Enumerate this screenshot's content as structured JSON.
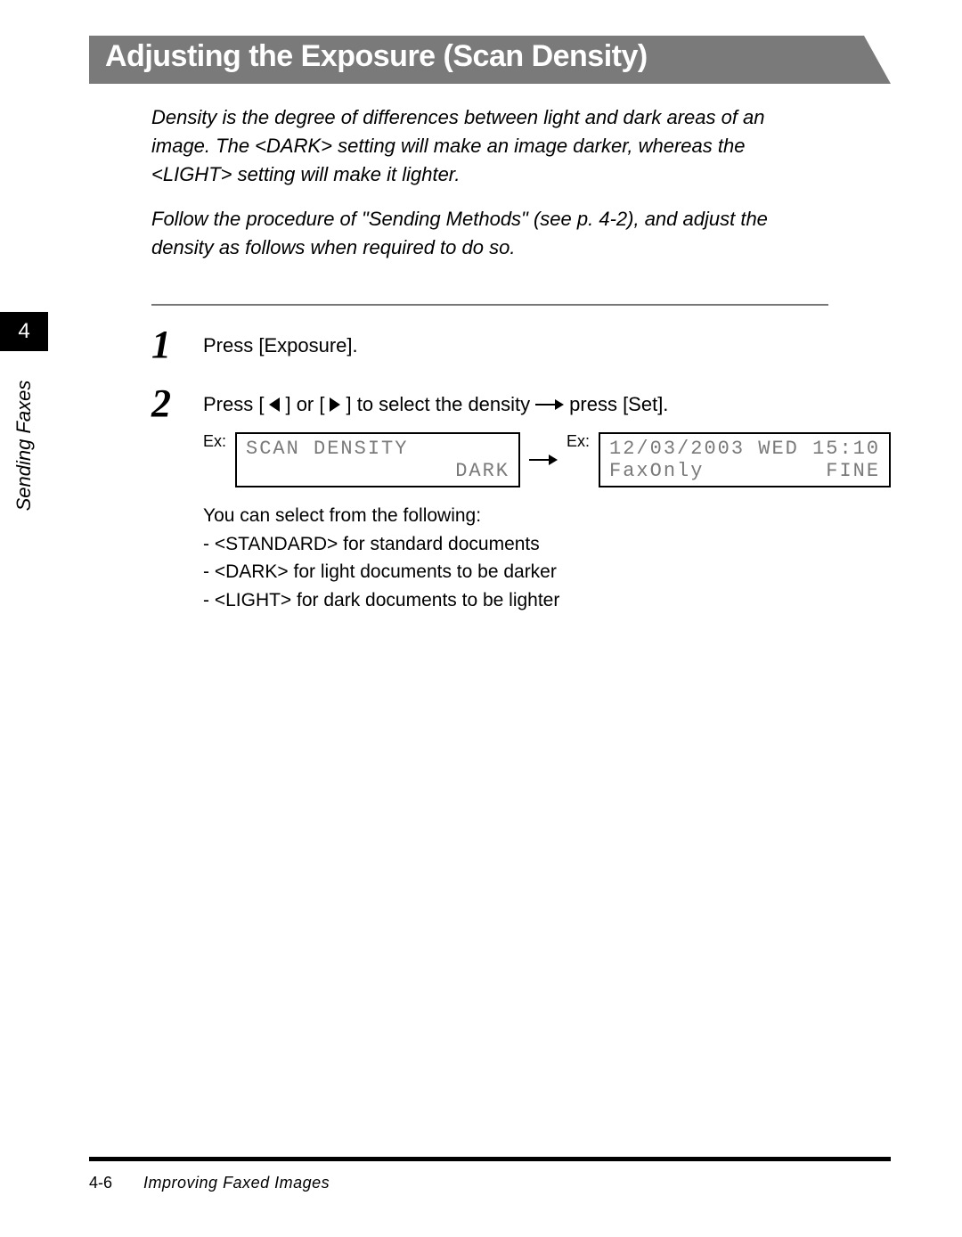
{
  "title": "Adjusting the Exposure (Scan Density)",
  "intro_para1": "Density is the degree of differences between light and dark areas of an image. The <DARK> setting will make an image darker, whereas the <LIGHT> setting will make it lighter.",
  "intro_para2": "Follow the procedure of \"Sending Methods\" (see p. 4-2), and adjust the density as follows when required to do so.",
  "step1": {
    "num": "1",
    "text": "Press [Exposure]."
  },
  "step2": {
    "num": "2",
    "text_before": "Press [",
    "text_mid1": "] or [",
    "text_mid2": "] to select the density ",
    "text_after": " press [Set].",
    "ex_label": "Ex:",
    "lcd_left_line1": "SCAN DENSITY",
    "lcd_left_line2": "DARK",
    "lcd_right_line1": "12/03/2003 WED 15:10",
    "lcd_right_line2_left": "FaxOnly",
    "lcd_right_line2_right": "FINE",
    "note_intro": "You can select from the following:",
    "note1": "- <STANDARD> for standard documents",
    "note2": "- <DARK> for light documents to be darker",
    "note3": "- <LIGHT> for dark documents to be lighter"
  },
  "side_tab": {
    "chapter": "4",
    "label": "Sending Faxes"
  },
  "footer": {
    "page": "4-6",
    "title": "Improving Faxed Images"
  }
}
